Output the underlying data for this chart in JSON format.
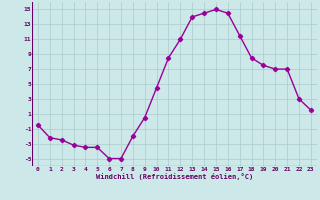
{
  "x": [
    0,
    1,
    2,
    3,
    4,
    5,
    6,
    7,
    8,
    9,
    10,
    11,
    12,
    13,
    14,
    15,
    16,
    17,
    18,
    19,
    20,
    21,
    22,
    23
  ],
  "y": [
    -0.5,
    -2.2,
    -2.5,
    -3.2,
    -3.5,
    -3.5,
    -5.0,
    -5.0,
    -2.0,
    0.5,
    4.5,
    8.5,
    11.0,
    14.0,
    14.5,
    15.0,
    14.5,
    11.5,
    8.5,
    7.5,
    7.0,
    7.0,
    3.0,
    1.5
  ],
  "line_color": "#990099",
  "bg_color": "#cce8e8",
  "grid_color": "#aacccc",
  "xlabel": "Windchill (Refroidissement éolien,°C)",
  "xlabel_color": "#660066",
  "tick_color": "#660066",
  "ylim": [
    -6,
    16
  ],
  "xlim": [
    -0.5,
    23.5
  ],
  "yticks": [
    -5,
    -3,
    -1,
    1,
    3,
    5,
    7,
    9,
    11,
    13,
    15
  ],
  "xticks": [
    0,
    1,
    2,
    3,
    4,
    5,
    6,
    7,
    8,
    9,
    10,
    11,
    12,
    13,
    14,
    15,
    16,
    17,
    18,
    19,
    20,
    21,
    22,
    23
  ],
  "marker": "D",
  "marker_size": 2.2,
  "line_width": 1.0,
  "font_family": "monospace",
  "tick_fontsize": 4.5,
  "xlabel_fontsize": 5.0
}
